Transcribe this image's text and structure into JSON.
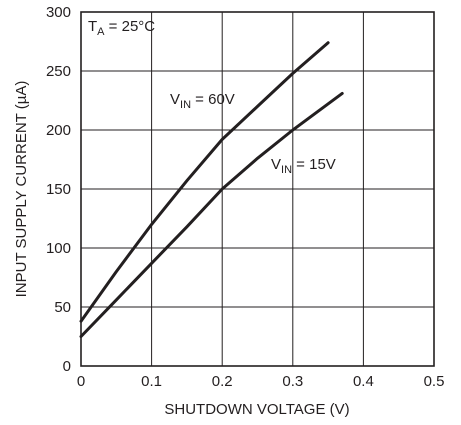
{
  "chart_data": {
    "type": "line",
    "xlabel": "SHUTDOWN VOLTAGE (V)",
    "ylabel": "INPUT SUPPLY CURRENT (µA)",
    "xlim": [
      0,
      0.5
    ],
    "ylim": [
      0,
      300
    ],
    "x_ticks": [
      "0",
      "0.1",
      "0.2",
      "0.3",
      "0.4",
      "0.5"
    ],
    "y_ticks": [
      "0",
      "50",
      "100",
      "150",
      "200",
      "250",
      "300"
    ],
    "grid": true,
    "condition": {
      "main": "T",
      "sub": "A",
      "rest": " = 25°C"
    },
    "series": [
      {
        "label": {
          "main": "V",
          "sub": "IN",
          "rest": " = 60V"
        },
        "x": [
          0,
          0.05,
          0.1,
          0.15,
          0.2,
          0.25,
          0.3,
          0.35
        ],
        "y": [
          38,
          80,
          120,
          157,
          192,
          220,
          248,
          274
        ]
      },
      {
        "label": {
          "main": "V",
          "sub": "IN",
          "rest": " = 15V"
        },
        "x": [
          0,
          0.05,
          0.1,
          0.15,
          0.2,
          0.25,
          0.3,
          0.37
        ],
        "y": [
          25,
          56,
          87,
          118,
          150,
          176,
          200,
          231
        ]
      }
    ],
    "colors": {
      "ink": "#231f20",
      "background": "#ffffff"
    }
  }
}
